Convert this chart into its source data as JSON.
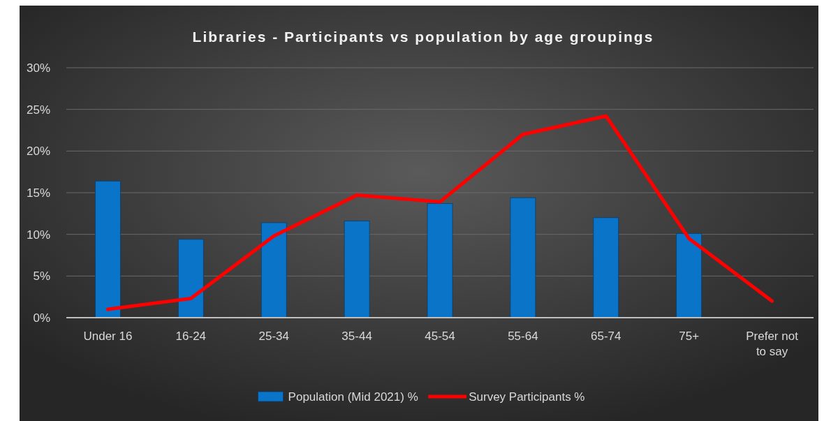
{
  "chart_data": {
    "type": "bar",
    "title": "Libraries - Participants vs population by age groupings",
    "categories": [
      "Under 16",
      "16-24",
      "25-34",
      "35-44",
      "45-54",
      "55-64",
      "65-74",
      "75+",
      "Prefer not to say"
    ],
    "series": [
      {
        "name": "Population (Mid 2021) %",
        "color": "#0a74c9",
        "values": [
          16.4,
          9.4,
          11.4,
          11.6,
          13.7,
          14.4,
          12.0,
          10.1,
          null
        ]
      },
      {
        "name": "Survey Participants %",
        "type": "line",
        "color": "#ff0000",
        "values": [
          1.0,
          2.3,
          9.8,
          14.7,
          13.9,
          22.0,
          24.2,
          9.5,
          2.0
        ]
      }
    ],
    "ylim": [
      0,
      30
    ],
    "yticks": [
      {
        "value": 0,
        "label": "0%"
      },
      {
        "value": 5,
        "label": "5%"
      },
      {
        "value": 10,
        "label": "10%"
      },
      {
        "value": 15,
        "label": "15%"
      },
      {
        "value": 20,
        "label": "20%"
      },
      {
        "value": 25,
        "label": "25%"
      },
      {
        "value": 30,
        "label": "30%"
      }
    ],
    "grid": "y",
    "legend": "bottom",
    "marker": "none",
    "line_style": "solid"
  }
}
